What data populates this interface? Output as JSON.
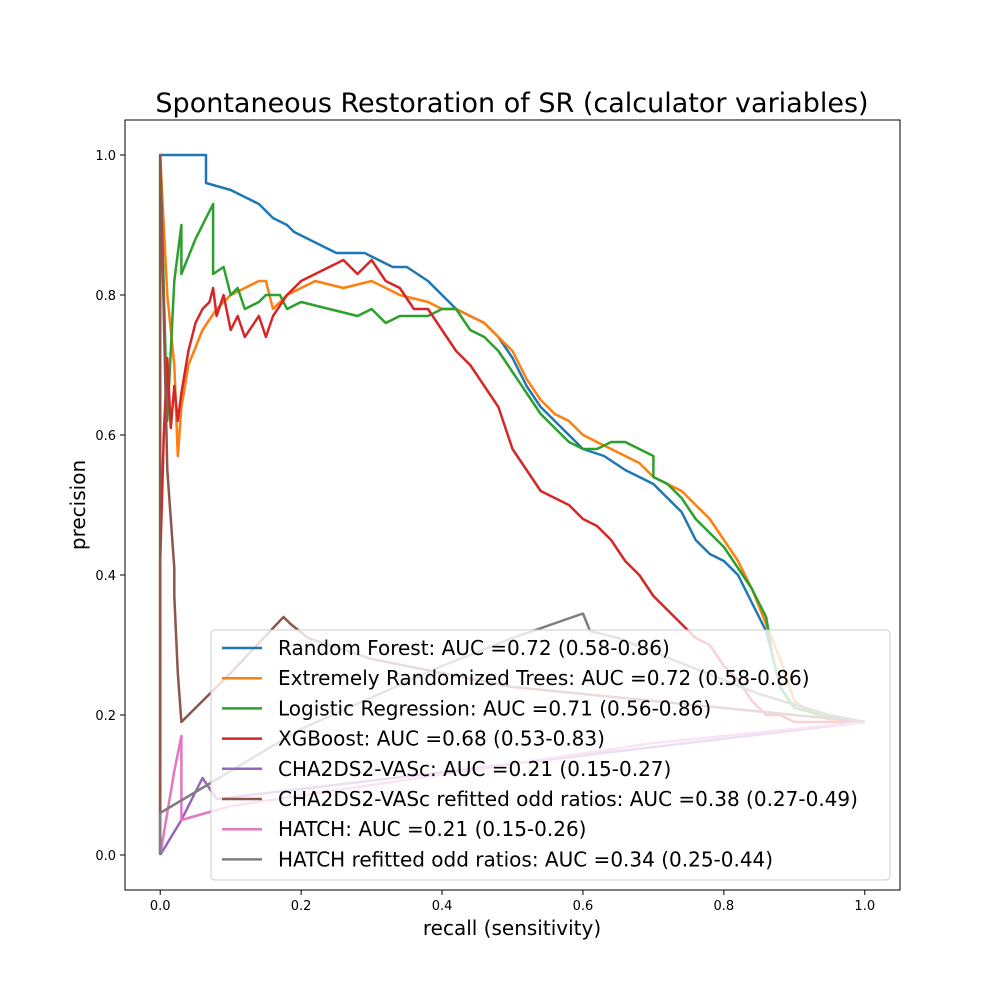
{
  "chart_data": {
    "type": "line",
    "title": "Spontaneous Restoration of SR (calculator variables)",
    "xlabel": "recall (sensitivity)",
    "ylabel": "precision",
    "xlim": [
      -0.05,
      1.05
    ],
    "ylim": [
      -0.05,
      1.05
    ],
    "xticks": [
      "0.0",
      "0.2",
      "0.4",
      "0.6",
      "0.8",
      "1.0"
    ],
    "yticks": [
      "0.0",
      "0.2",
      "0.4",
      "0.6",
      "0.8",
      "1.0"
    ],
    "grid": false,
    "legend_position": "lower right",
    "series": [
      {
        "name": "Random Forest: AUC =0.72 (0.58-0.86)",
        "color": "#1f77b4",
        "x": [
          0.0,
          0.0,
          0.065,
          0.065,
          0.1,
          0.12,
          0.14,
          0.16,
          0.18,
          0.19,
          0.21,
          0.23,
          0.25,
          0.27,
          0.29,
          0.31,
          0.33,
          0.35,
          0.38,
          0.39,
          0.41,
          0.42,
          0.44,
          0.46,
          0.48,
          0.5,
          0.52,
          0.54,
          0.56,
          0.58,
          0.6,
          0.63,
          0.66,
          0.68,
          0.7,
          0.72,
          0.74,
          0.76,
          0.78,
          0.8,
          0.82,
          0.84,
          0.86,
          0.87,
          0.88,
          0.9,
          0.94,
          1.0
        ],
        "y": [
          0.0,
          1.0,
          1.0,
          0.96,
          0.95,
          0.94,
          0.93,
          0.91,
          0.9,
          0.89,
          0.88,
          0.87,
          0.86,
          0.86,
          0.86,
          0.85,
          0.84,
          0.84,
          0.82,
          0.81,
          0.79,
          0.78,
          0.77,
          0.76,
          0.74,
          0.71,
          0.67,
          0.64,
          0.62,
          0.6,
          0.58,
          0.57,
          0.55,
          0.54,
          0.53,
          0.51,
          0.49,
          0.45,
          0.43,
          0.42,
          0.4,
          0.36,
          0.32,
          0.28,
          0.24,
          0.21,
          0.2,
          0.19
        ]
      },
      {
        "name": "Extremely Randomized Trees: AUC =0.72 (0.58-0.86)",
        "color": "#ff7f0e",
        "x": [
          0.0,
          0.0,
          0.01,
          0.02,
          0.025,
          0.03,
          0.04,
          0.06,
          0.08,
          0.1,
          0.12,
          0.14,
          0.15,
          0.16,
          0.18,
          0.22,
          0.26,
          0.3,
          0.34,
          0.38,
          0.4,
          0.42,
          0.44,
          0.46,
          0.48,
          0.5,
          0.52,
          0.54,
          0.56,
          0.58,
          0.6,
          0.62,
          0.64,
          0.66,
          0.68,
          0.7,
          0.72,
          0.74,
          0.76,
          0.78,
          0.8,
          0.82,
          0.84,
          0.86,
          0.88,
          0.9,
          0.93,
          0.96,
          1.0
        ],
        "y": [
          0.0,
          1.0,
          0.8,
          0.7,
          0.57,
          0.64,
          0.7,
          0.75,
          0.78,
          0.8,
          0.81,
          0.82,
          0.82,
          0.78,
          0.8,
          0.82,
          0.81,
          0.82,
          0.8,
          0.79,
          0.78,
          0.78,
          0.77,
          0.76,
          0.74,
          0.72,
          0.68,
          0.65,
          0.63,
          0.62,
          0.6,
          0.59,
          0.58,
          0.57,
          0.56,
          0.54,
          0.53,
          0.52,
          0.5,
          0.48,
          0.45,
          0.42,
          0.38,
          0.33,
          0.28,
          0.22,
          0.2,
          0.19,
          0.19
        ]
      },
      {
        "name": "Logistic Regression: AUC =0.71 (0.56-0.86)",
        "color": "#2ca02c",
        "x": [
          0.0,
          0.0,
          0.01,
          0.02,
          0.03,
          0.03,
          0.05,
          0.075,
          0.075,
          0.09,
          0.1,
          0.11,
          0.12,
          0.14,
          0.15,
          0.17,
          0.18,
          0.2,
          0.24,
          0.28,
          0.3,
          0.32,
          0.34,
          0.38,
          0.4,
          0.42,
          0.44,
          0.46,
          0.48,
          0.5,
          0.52,
          0.54,
          0.56,
          0.58,
          0.6,
          0.62,
          0.64,
          0.66,
          0.68,
          0.7,
          0.7,
          0.72,
          0.74,
          0.76,
          0.78,
          0.8,
          0.82,
          0.84,
          0.86,
          0.87,
          0.88,
          0.9,
          0.94,
          1.0
        ],
        "y": [
          0.0,
          1.0,
          0.62,
          0.82,
          0.9,
          0.83,
          0.88,
          0.93,
          0.83,
          0.84,
          0.8,
          0.81,
          0.78,
          0.79,
          0.8,
          0.8,
          0.78,
          0.79,
          0.78,
          0.77,
          0.78,
          0.76,
          0.77,
          0.77,
          0.78,
          0.78,
          0.75,
          0.74,
          0.72,
          0.69,
          0.66,
          0.63,
          0.61,
          0.59,
          0.58,
          0.58,
          0.59,
          0.59,
          0.58,
          0.57,
          0.54,
          0.53,
          0.51,
          0.48,
          0.46,
          0.44,
          0.41,
          0.38,
          0.34,
          0.28,
          0.24,
          0.21,
          0.2,
          0.19
        ]
      },
      {
        "name": "XGBoost: AUC =0.68 (0.53-0.83)",
        "color": "#d62728",
        "x": [
          0.0,
          0.0,
          0.005,
          0.01,
          0.015,
          0.02,
          0.025,
          0.03,
          0.04,
          0.05,
          0.06,
          0.07,
          0.075,
          0.08,
          0.09,
          0.1,
          0.11,
          0.12,
          0.14,
          0.15,
          0.16,
          0.18,
          0.2,
          0.22,
          0.24,
          0.26,
          0.28,
          0.3,
          0.32,
          0.34,
          0.36,
          0.38,
          0.4,
          0.42,
          0.44,
          0.46,
          0.48,
          0.5,
          0.52,
          0.54,
          0.56,
          0.58,
          0.6,
          0.62,
          0.64,
          0.66,
          0.68,
          0.7,
          0.72,
          0.74,
          0.76,
          0.78,
          0.8,
          0.82,
          0.84,
          0.86,
          0.88,
          0.9,
          0.94,
          1.0
        ],
        "y": [
          0.0,
          0.42,
          0.6,
          0.71,
          0.61,
          0.67,
          0.62,
          0.66,
          0.72,
          0.76,
          0.78,
          0.79,
          0.81,
          0.77,
          0.8,
          0.75,
          0.77,
          0.74,
          0.77,
          0.74,
          0.77,
          0.8,
          0.82,
          0.83,
          0.84,
          0.85,
          0.83,
          0.85,
          0.82,
          0.81,
          0.78,
          0.78,
          0.75,
          0.72,
          0.7,
          0.67,
          0.64,
          0.58,
          0.55,
          0.52,
          0.51,
          0.5,
          0.48,
          0.47,
          0.45,
          0.42,
          0.4,
          0.37,
          0.35,
          0.33,
          0.31,
          0.3,
          0.27,
          0.25,
          0.22,
          0.2,
          0.2,
          0.19,
          0.19,
          0.19
        ]
      },
      {
        "name": "CHA2DS2-VASc: AUC =0.21 (0.15-0.27)",
        "color": "#9467bd",
        "x": [
          0.0,
          0.03,
          0.06,
          0.08,
          1.0
        ],
        "y": [
          0.0,
          0.05,
          0.11,
          0.08,
          0.19
        ]
      },
      {
        "name": "CHA2DS2-VASc refitted odd ratios: AUC =0.38 (0.27-0.49)",
        "color": "#8c564b",
        "x": [
          0.0,
          0.0,
          0.01,
          0.02,
          0.02,
          0.025,
          0.03,
          0.03,
          0.04,
          0.1,
          0.175,
          0.185,
          0.21,
          0.3,
          0.5,
          0.7,
          0.8,
          0.9,
          1.0
        ],
        "y": [
          0.0,
          1.0,
          0.55,
          0.41,
          0.37,
          0.26,
          0.19,
          0.19,
          0.2,
          0.26,
          0.34,
          0.33,
          0.31,
          0.28,
          0.24,
          0.22,
          0.21,
          0.2,
          0.19
        ]
      },
      {
        "name": "HATCH: AUC =0.21 (0.15-0.26)",
        "color": "#e377c2",
        "x": [
          0.0,
          0.02,
          0.03,
          0.03,
          0.1,
          0.3,
          0.5,
          0.7,
          0.9,
          1.0
        ],
        "y": [
          0.0,
          0.12,
          0.17,
          0.05,
          0.07,
          0.1,
          0.13,
          0.16,
          0.18,
          0.19
        ]
      },
      {
        "name": "HATCH refitted odd ratios: AUC =0.34 (0.25-0.44)",
        "color": "#7f7f7f",
        "x": [
          0.0,
          0.0,
          0.05,
          0.2,
          0.4,
          0.5,
          0.6,
          0.61,
          0.65,
          0.75,
          0.85,
          0.95,
          1.0
        ],
        "y": [
          0.0,
          0.06,
          0.09,
          0.18,
          0.27,
          0.31,
          0.345,
          0.32,
          0.31,
          0.27,
          0.23,
          0.2,
          0.19
        ]
      }
    ]
  }
}
